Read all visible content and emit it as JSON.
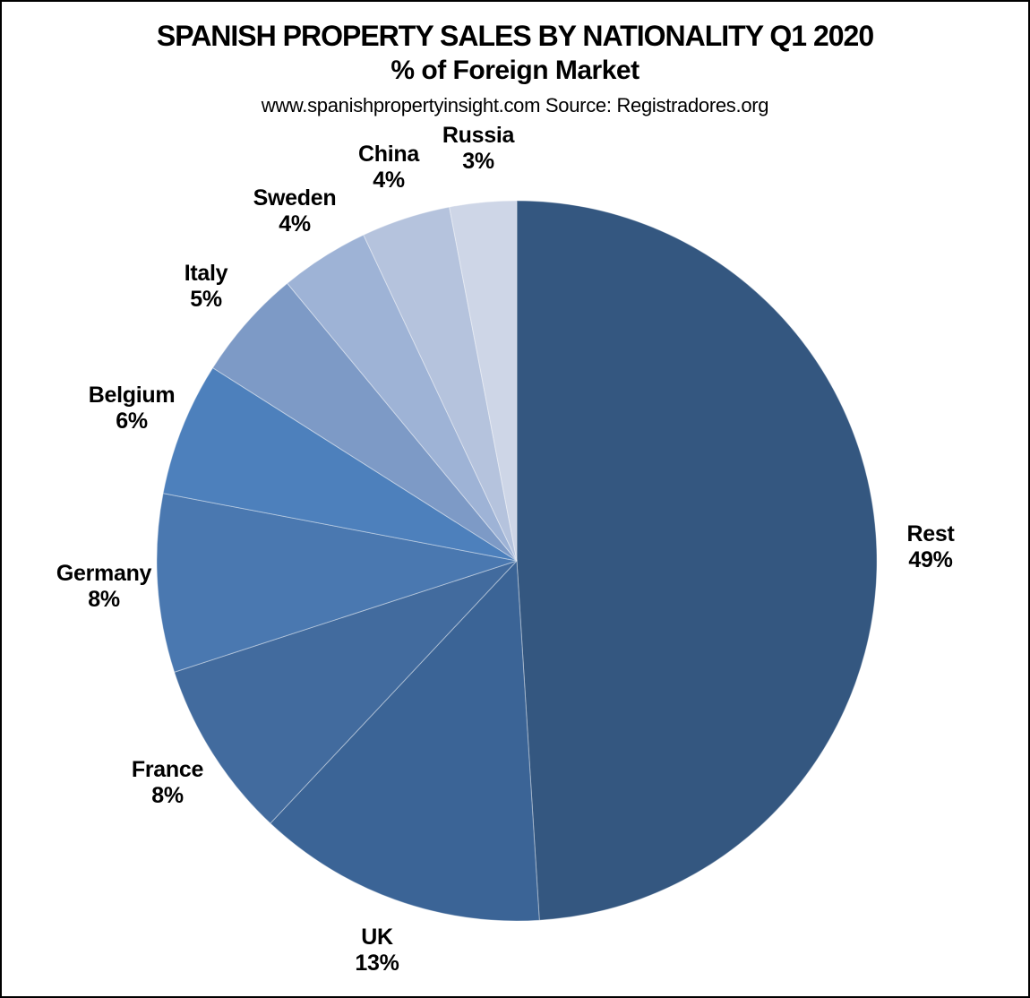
{
  "header": {
    "title": "SPANISH PROPERTY SALES BY NATIONALITY Q1 2020",
    "subtitle": "% of Foreign Market",
    "source": "www.spanishpropertyinsight.com Source: Registradores.org"
  },
  "chart_data": {
    "type": "pie",
    "title": "SPANISH PROPERTY SALES BY NATIONALITY Q1 2020",
    "subtitle": "% of Foreign Market",
    "source": "www.spanishpropertyinsight.com Source: Registradores.org",
    "unit": "%",
    "total": 100,
    "start_angle_deg": 0,
    "direction": "clockwise",
    "legend_position": "outside-labels",
    "slice_border_color": "rgba(255,255,255,0.4)",
    "label_color": "#000000",
    "slices": [
      {
        "label": "Rest",
        "value": 49,
        "display": "49%",
        "color": "#345780"
      },
      {
        "label": "UK",
        "value": 13,
        "display": "13%",
        "color": "#3B6496"
      },
      {
        "label": "France",
        "value": 8,
        "display": "8%",
        "color": "#426B9E"
      },
      {
        "label": "Germany",
        "value": 8,
        "display": "8%",
        "color": "#4A78B0"
      },
      {
        "label": "Belgium",
        "value": 6,
        "display": "6%",
        "color": "#4D80BC"
      },
      {
        "label": "Italy",
        "value": 5,
        "display": "5%",
        "color": "#7D9AC6"
      },
      {
        "label": "Sweden",
        "value": 4,
        "display": "4%",
        "color": "#9EB3D6"
      },
      {
        "label": "China",
        "value": 4,
        "display": "4%",
        "color": "#B5C3DD"
      },
      {
        "label": "Russia",
        "value": 3,
        "display": "3%",
        "color": "#CED6E7"
      }
    ]
  }
}
